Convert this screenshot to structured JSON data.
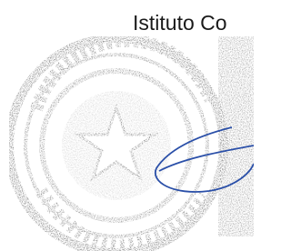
{
  "stamp": {
    "header": "Istituto Co"
  }
}
